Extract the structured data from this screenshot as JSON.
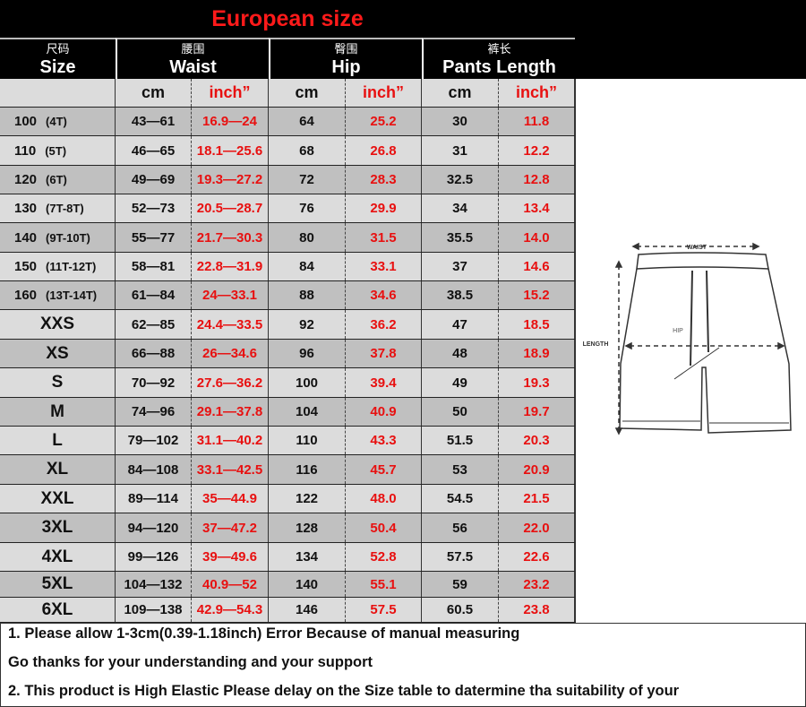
{
  "title": "European size",
  "headers": [
    {
      "cn": "尺码",
      "en": "Size"
    },
    {
      "cn": "腰围",
      "en": "Waist"
    },
    {
      "cn": "臀围",
      "en": "Hip"
    },
    {
      "cn": "裤长",
      "en": "Pants Length"
    }
  ],
  "units": {
    "cm": "cm",
    "inch": "inch”"
  },
  "rows": [
    {
      "size": "100",
      "age": "(4T)",
      "waist_cm": "43—61",
      "waist_in": "16.9—24",
      "hip_cm": "64",
      "hip_in": "25.2",
      "len_cm": "30",
      "len_in": "11.8"
    },
    {
      "size": "110",
      "age": "(5T)",
      "waist_cm": "46—65",
      "waist_in": "18.1—25.6",
      "hip_cm": "68",
      "hip_in": "26.8",
      "len_cm": "31",
      "len_in": "12.2"
    },
    {
      "size": "120",
      "age": "(6T)",
      "waist_cm": "49—69",
      "waist_in": "19.3—27.2",
      "hip_cm": "72",
      "hip_in": "28.3",
      "len_cm": "32.5",
      "len_in": "12.8"
    },
    {
      "size": "130",
      "age": "(7T-8T)",
      "waist_cm": "52—73",
      "waist_in": "20.5—28.7",
      "hip_cm": "76",
      "hip_in": "29.9",
      "len_cm": "34",
      "len_in": "13.4"
    },
    {
      "size": "140",
      "age": "(9T-10T)",
      "waist_cm": "55—77",
      "waist_in": "21.7—30.3",
      "hip_cm": "80",
      "hip_in": "31.5",
      "len_cm": "35.5",
      "len_in": "14.0"
    },
    {
      "size": "150",
      "age": "(11T-12T)",
      "waist_cm": "58—81",
      "waist_in": "22.8—31.9",
      "hip_cm": "84",
      "hip_in": "33.1",
      "len_cm": "37",
      "len_in": "14.6"
    },
    {
      "size": "160",
      "age": "(13T-14T)",
      "waist_cm": "61—84",
      "waist_in": "24—33.1",
      "hip_cm": "88",
      "hip_in": "34.6",
      "len_cm": "38.5",
      "len_in": "15.2"
    },
    {
      "size": "XXS",
      "waist_cm": "62—85",
      "waist_in": "24.4—33.5",
      "hip_cm": "92",
      "hip_in": "36.2",
      "len_cm": "47",
      "len_in": "18.5"
    },
    {
      "size": "XS",
      "waist_cm": "66—88",
      "waist_in": "26—34.6",
      "hip_cm": "96",
      "hip_in": "37.8",
      "len_cm": "48",
      "len_in": "18.9"
    },
    {
      "size": "S",
      "waist_cm": "70—92",
      "waist_in": "27.6—36.2",
      "hip_cm": "100",
      "hip_in": "39.4",
      "len_cm": "49",
      "len_in": "19.3"
    },
    {
      "size": "M",
      "waist_cm": "74—96",
      "waist_in": "29.1—37.8",
      "hip_cm": "104",
      "hip_in": "40.9",
      "len_cm": "50",
      "len_in": "19.7"
    },
    {
      "size": "L",
      "waist_cm": "79—102",
      "waist_in": "31.1—40.2",
      "hip_cm": "110",
      "hip_in": "43.3",
      "len_cm": "51.5",
      "len_in": "20.3"
    },
    {
      "size": "XL",
      "waist_cm": "84—108",
      "waist_in": "33.1—42.5",
      "hip_cm": "116",
      "hip_in": "45.7",
      "len_cm": "53",
      "len_in": "20.9"
    },
    {
      "size": "XXL",
      "waist_cm": "89—114",
      "waist_in": "35—44.9",
      "hip_cm": "122",
      "hip_in": "48.0",
      "len_cm": "54.5",
      "len_in": "21.5"
    },
    {
      "size": "3XL",
      "waist_cm": "94—120",
      "waist_in": "37—47.2",
      "hip_cm": "128",
      "hip_in": "50.4",
      "len_cm": "56",
      "len_in": "22.0"
    },
    {
      "size": "4XL",
      "waist_cm": "99—126",
      "waist_in": "39—49.6",
      "hip_cm": "134",
      "hip_in": "52.8",
      "len_cm": "57.5",
      "len_in": "22.6"
    },
    {
      "size": "5XL",
      "waist_cm": "104—132",
      "waist_in": "40.9—52",
      "hip_cm": "140",
      "hip_in": "55.1",
      "len_cm": "59",
      "len_in": "23.2"
    },
    {
      "size": "6XL",
      "waist_cm": "109—138",
      "waist_in": "42.9—54.3",
      "hip_cm": "146",
      "hip_in": "57.5",
      "len_cm": "60.5",
      "len_in": "23.8"
    }
  ],
  "diagram": {
    "waist": "WAIST",
    "hip": "HIP",
    "length": "LENGTH"
  },
  "notes": [
    "1. Please allow 1-3cm(0.39-1.18inch) Error Because of manual measuring",
    "Go thanks for your understanding and your support",
    "2. This product is High Elastic  Please delay on the Size table to datermine tha suitability of your"
  ],
  "colors": {
    "dark_row": "#c0c0c0",
    "light_row": "#dcdcdc",
    "red": "#e81010",
    "header": "#000000"
  }
}
